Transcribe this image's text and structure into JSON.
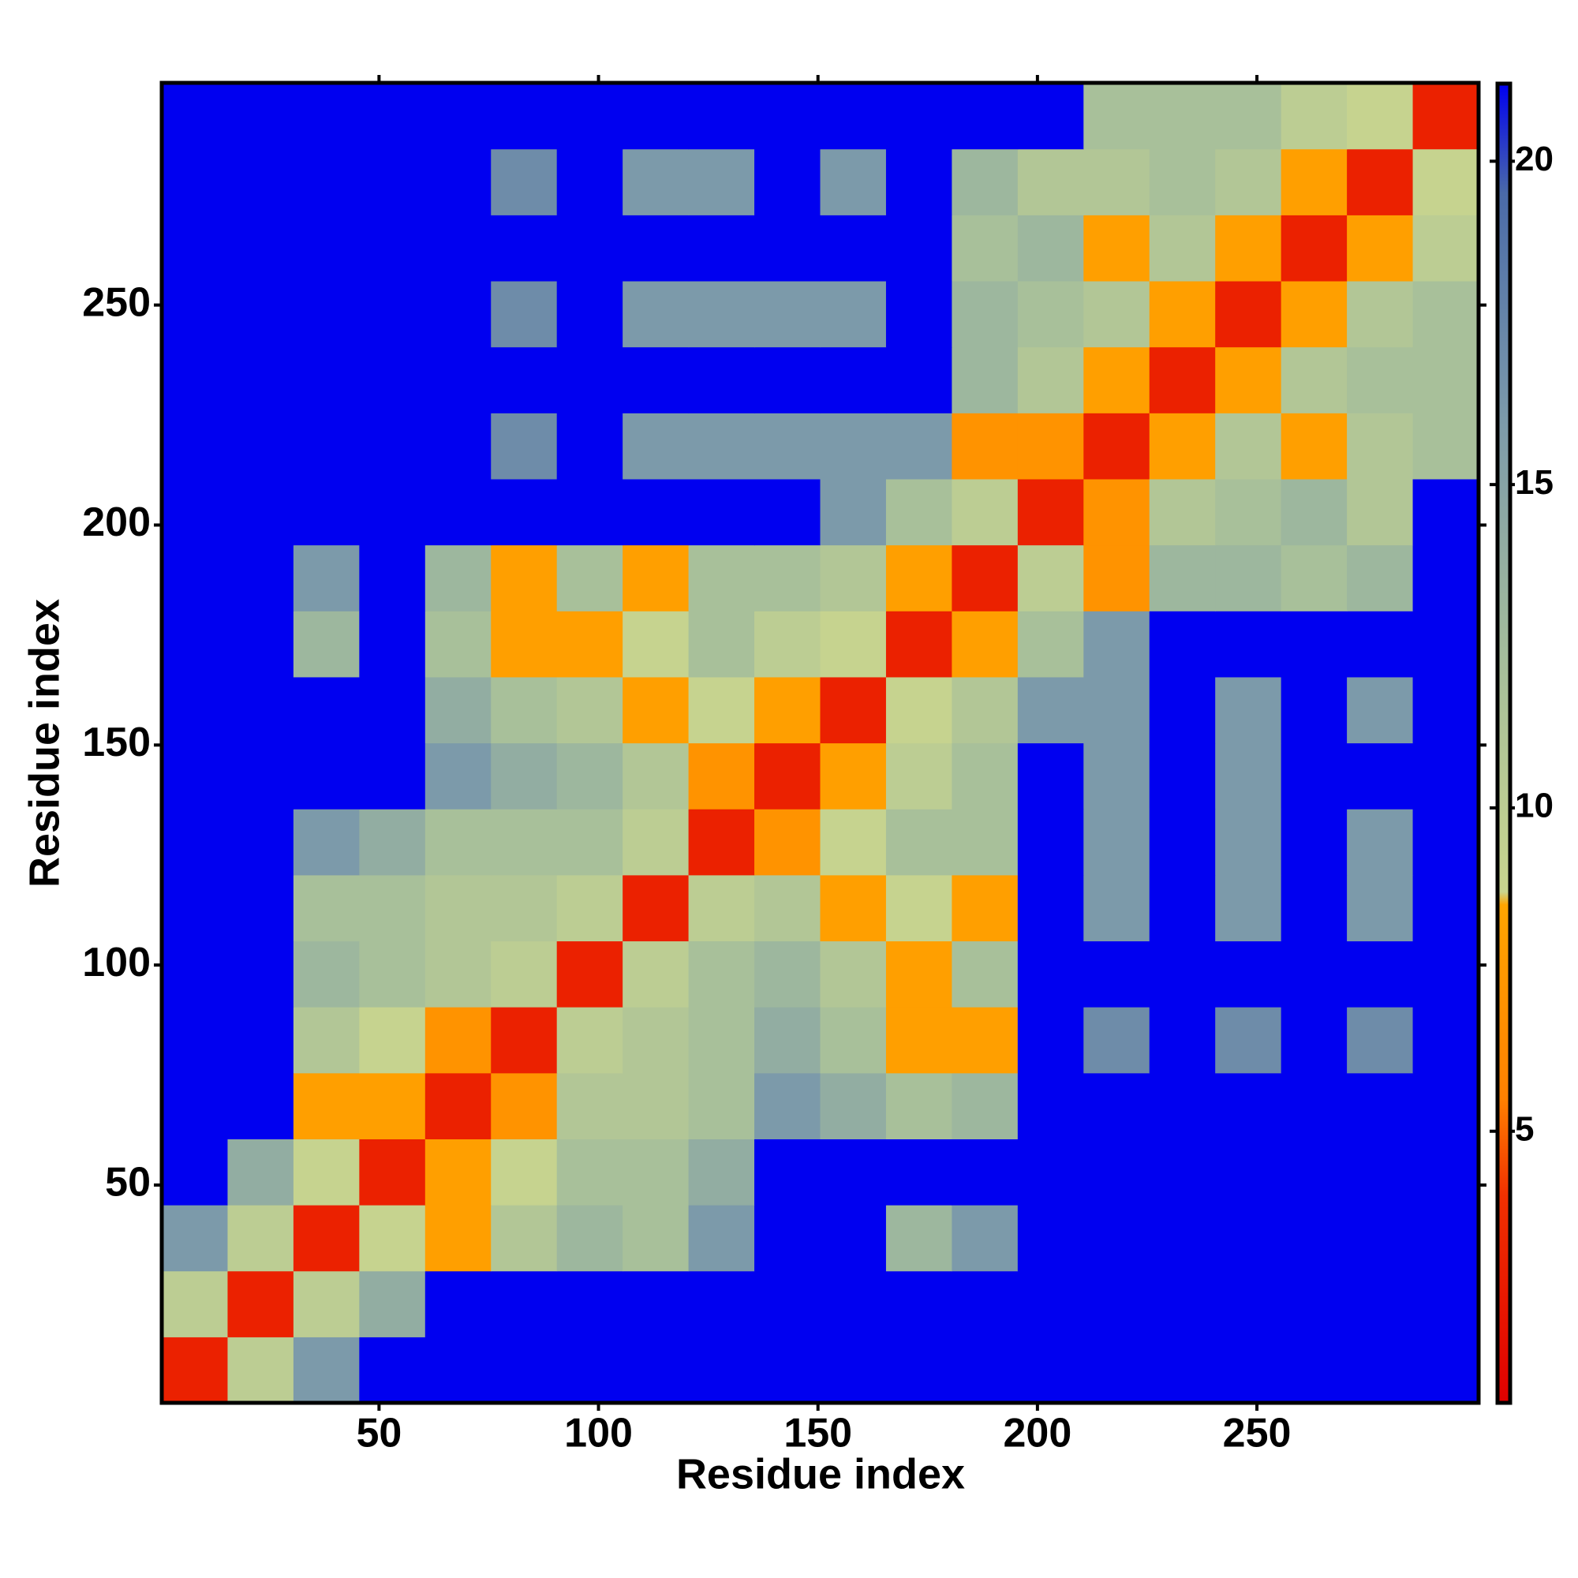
{
  "chart_data": {
    "type": "heatmap",
    "xlabel": "Residue index",
    "ylabel": "Residue index",
    "x": [
      8,
      23,
      38,
      53,
      68,
      83,
      98,
      113,
      128,
      143,
      158,
      173,
      188,
      203,
      218,
      233,
      248,
      263,
      278,
      293
    ],
    "y": [
      8,
      23,
      38,
      53,
      68,
      83,
      98,
      113,
      128,
      143,
      158,
      173,
      188,
      203,
      218,
      233,
      248,
      263,
      278,
      293
    ],
    "z": [
      [
        3,
        10,
        16,
        22,
        22,
        22,
        22,
        22,
        22,
        22,
        22,
        22,
        22,
        22,
        22,
        22,
        22,
        22,
        22,
        22
      ],
      [
        10,
        3,
        10,
        14,
        22,
        22,
        22,
        22,
        22,
        22,
        22,
        22,
        22,
        22,
        22,
        22,
        22,
        22,
        22,
        22
      ],
      [
        16,
        10,
        3,
        9,
        8,
        11,
        13,
        12,
        16,
        22,
        22,
        13,
        16,
        22,
        22,
        22,
        22,
        22,
        22,
        22
      ],
      [
        22,
        14,
        9,
        3,
        8,
        9,
        12,
        12,
        14,
        22,
        22,
        22,
        22,
        22,
        22,
        22,
        22,
        22,
        22,
        22
      ],
      [
        22,
        22,
        8,
        8,
        3,
        7,
        11,
        11,
        12,
        16,
        14,
        12,
        13,
        22,
        22,
        22,
        22,
        22,
        22,
        22
      ],
      [
        22,
        22,
        11,
        9,
        7,
        3,
        10,
        11,
        12,
        14,
        12,
        8,
        8,
        22,
        17,
        22,
        17,
        22,
        17,
        22
      ],
      [
        22,
        22,
        13,
        12,
        11,
        10,
        3,
        10,
        12,
        13,
        11,
        8,
        12,
        22,
        22,
        22,
        22,
        22,
        22,
        22
      ],
      [
        22,
        22,
        12,
        12,
        11,
        11,
        10,
        3,
        10,
        11,
        8,
        9,
        8,
        22,
        16,
        22,
        16,
        22,
        16,
        22
      ],
      [
        22,
        22,
        16,
        14,
        12,
        12,
        12,
        10,
        3,
        7,
        9,
        12,
        12,
        22,
        16,
        22,
        16,
        22,
        16,
        22
      ],
      [
        22,
        22,
        22,
        22,
        16,
        14,
        13,
        11,
        7,
        3,
        8,
        10,
        12,
        22,
        16,
        22,
        16,
        22,
        22,
        22
      ],
      [
        22,
        22,
        22,
        22,
        14,
        12,
        11,
        8,
        9,
        8,
        3,
        9,
        11,
        16,
        16,
        22,
        16,
        22,
        16,
        22
      ],
      [
        22,
        22,
        13,
        22,
        12,
        8,
        8,
        9,
        12,
        10,
        9,
        3,
        8,
        12,
        16,
        22,
        22,
        22,
        22,
        22
      ],
      [
        22,
        22,
        16,
        22,
        13,
        8,
        12,
        8,
        12,
        12,
        11,
        8,
        3,
        10,
        7,
        13,
        13,
        12,
        13,
        22
      ],
      [
        22,
        22,
        22,
        22,
        22,
        22,
        22,
        22,
        22,
        22,
        16,
        12,
        10,
        3,
        7,
        11,
        12,
        13,
        11,
        22
      ],
      [
        22,
        22,
        22,
        22,
        22,
        17,
        22,
        16,
        16,
        16,
        16,
        16,
        7,
        7,
        3,
        8,
        11,
        8,
        11,
        12
      ],
      [
        22,
        22,
        22,
        22,
        22,
        22,
        22,
        22,
        22,
        22,
        22,
        22,
        13,
        11,
        8,
        3,
        8,
        11,
        12,
        12
      ],
      [
        22,
        22,
        22,
        22,
        22,
        17,
        22,
        16,
        16,
        16,
        16,
        22,
        13,
        12,
        11,
        8,
        3,
        8,
        11,
        12
      ],
      [
        22,
        22,
        22,
        22,
        22,
        22,
        22,
        22,
        22,
        22,
        22,
        22,
        12,
        13,
        8,
        11,
        8,
        3,
        8,
        10
      ],
      [
        22,
        22,
        22,
        22,
        22,
        17,
        22,
        16,
        16,
        22,
        16,
        22,
        13,
        11,
        11,
        12,
        11,
        8,
        3,
        9
      ],
      [
        22,
        22,
        22,
        22,
        22,
        22,
        22,
        22,
        22,
        22,
        22,
        22,
        22,
        22,
        12,
        12,
        12,
        10,
        9,
        3
      ]
    ],
    "xlim": [
      0.5,
      300.5
    ],
    "ylim": [
      0.5,
      300.5
    ],
    "xticks": [
      50,
      100,
      150,
      200,
      250
    ],
    "yticks": [
      50,
      100,
      150,
      200,
      250
    ],
    "zlim": [
      0.8,
      21.2
    ],
    "zticks": [
      5,
      10,
      15,
      20
    ],
    "colorscale": [
      [
        0.8,
        "#e00000"
      ],
      [
        4,
        "#f03000"
      ],
      [
        5.5,
        "#ff8000"
      ],
      [
        8.5,
        "#ffa500"
      ],
      [
        8.7,
        "#c9d58e"
      ],
      [
        12,
        "#a8c09a"
      ],
      [
        16,
        "#7c9aaa"
      ],
      [
        19.5,
        "#4a6aa8"
      ],
      [
        21.2,
        "#0000f0"
      ]
    ]
  }
}
